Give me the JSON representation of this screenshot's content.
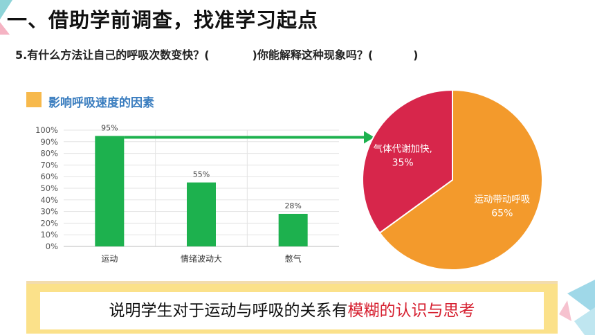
{
  "heading": "一、借助学前调查，找准学习起点",
  "question": {
    "part1": "5.有什么方法让自己的呼吸次数变快？(",
    "part2": ")你能解释这种现象吗？(",
    "part3": ")"
  },
  "colors": {
    "bar": "#1db14e",
    "arrow": "#1db14e",
    "pie_large": "#f39a2c",
    "pie_small": "#d7264b",
    "banner": "#fbe18a",
    "highlight": "#d62030"
  },
  "banner": {
    "normal": "说明学生对于运动与呼吸的关系有",
    "highlight": "模糊的认识与思考"
  },
  "chart_data": [
    {
      "type": "bar",
      "title": "影响呼吸速度的因素",
      "categories": [
        "运动",
        "情绪波动大",
        "憋气"
      ],
      "values": [
        95,
        55,
        28
      ],
      "data_labels": [
        "95%",
        "55%",
        "28%"
      ],
      "yticks": [
        "0%",
        "10%",
        "20%",
        "30%",
        "40%",
        "50%",
        "60%",
        "70%",
        "80%",
        "90%",
        "100%"
      ],
      "ylim": [
        0,
        100
      ],
      "grid": true,
      "legend": "none"
    },
    {
      "type": "pie",
      "slices": [
        {
          "label": "运动带动呼吸",
          "value": 65,
          "pct_label": "65%"
        },
        {
          "label": "气体代谢加快,",
          "value": 35,
          "pct_label": "35%"
        }
      ]
    }
  ]
}
